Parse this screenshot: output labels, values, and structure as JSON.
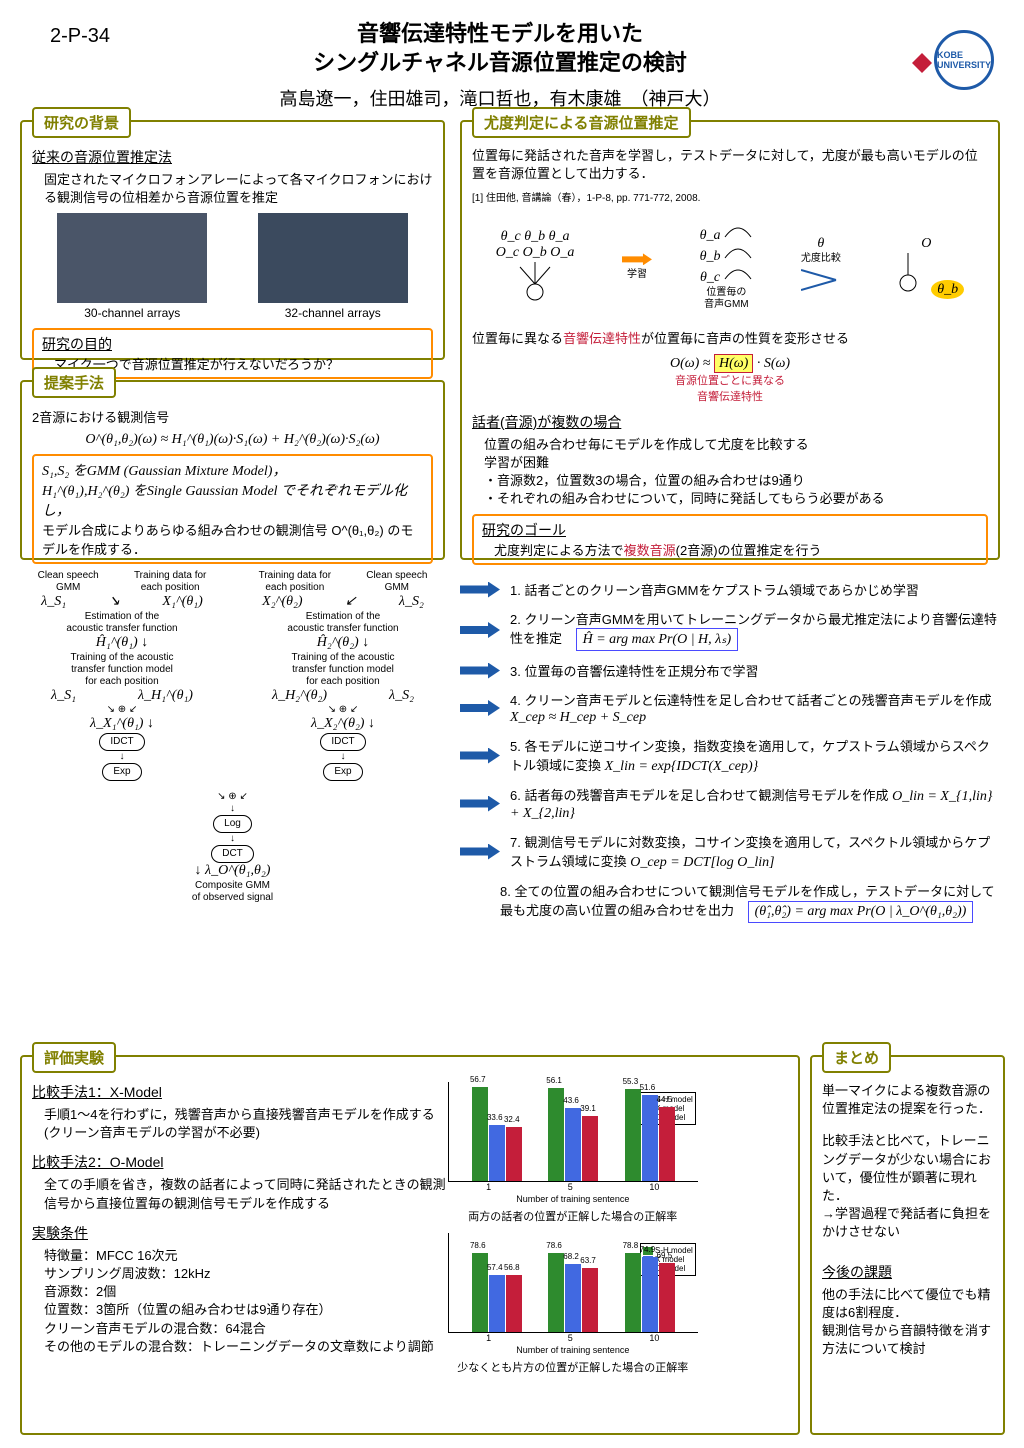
{
  "header": {
    "poster_id": "2-P-34",
    "title_line1": "音響伝達特性モデルを用いた",
    "title_line2": "シングルチャネル音源位置推定の検討",
    "authors": "高島遼一，住田雄司，滝口哲也，有木康雄　（神戸大）",
    "logo_text": "KOBE UNIVERSITY"
  },
  "background": {
    "label": "研究の背景",
    "sub1_title": "従来の音源位置推定法",
    "sub1_body": "固定されたマイクロフォンアレーによって各マイクロフォンにおける観測信号の位相差から音源位置を推定",
    "img1_caption": "30-channel arrays",
    "img2_caption": "32-channel arrays",
    "purpose_title": "研究の目的",
    "purpose_body": "マイク一つで音源位置推定が行えないだろうか？",
    "border_color": "#808000"
  },
  "likelihood": {
    "label": "尤度判定による音源位置推定",
    "intro": "位置毎に発話された音声を学習し，テストデータに対して，尤度が最も高いモデルの位置を音源位置として出力する．",
    "ref": "[1] 住田他, 音講論（春），1-P-8, pp. 771-772, 2008.",
    "diag_learn": "学習",
    "diag_compare": "尤度比較",
    "diag_gmm": "位置毎の\n音声GMM",
    "transform_intro": "位置毎に異なる音響伝達特性が位置毎に音声の性質を変形させる",
    "transform_eq": "O(ω) ≈ H(ω) · S(ω)",
    "transform_sub1": "音源位置ごとに異なる",
    "transform_sub2": "音響伝達特性",
    "multi_title": "話者(音源)が複数の場合",
    "multi_body": "位置の組み合わせ毎にモデルを作成して尤度を比較する\n学習が困難\n・音源数2，位置数3の場合，位置の組み合わせは9通り\n・それぞれの組み合わせについて，同時に発話してもらう必要がある",
    "goal_title": "研究のゴール",
    "goal_body": "尤度判定による方法で複数音源(2音源)の位置推定を行う",
    "goal_highlight": "複数音源",
    "border_color": "#808000"
  },
  "proposal": {
    "label": "提案手法",
    "obs_title": "2音源における観測信号",
    "obs_eq": "O^(θ₁,θ₂)(ω) ≈ H₁^(θ₁)(ω)·S₁(ω) + H₂^(θ₂)(ω)·S₂(ω)",
    "gmm_line1": "S₁,S₂ をGMM (Gaussian Mixture Model)，",
    "gmm_line2": "H₁^(θ₁),H₂^(θ₂) をSingle Gaussian Model でそれぞれモデル化し，",
    "gmm_line3": "モデル合成によりあらゆる組み合わせの観測信号 O^(θ₁,θ₂) のモデルを作成する．",
    "flow_labels": {
      "clean_gmm": "Clean speech\nGMM",
      "train_pos": "Training data for\neach position",
      "est_atf": "Estimation of the\nacoustic transfer function",
      "train_atf": "Training of the acoustic\ntransfer function model\nfor each position",
      "idct": "IDCT",
      "exp": "Exp",
      "log": "Log",
      "dct": "DCT",
      "composite": "Composite GMM\nof observed signal"
    },
    "border_color": "#808000"
  },
  "steps": [
    {
      "text": "1. 話者ごとのクリーン音声GMMをケプストラム領域であらかじめ学習",
      "formula": ""
    },
    {
      "text": "2. クリーン音声GMMを用いてトレーニングデータから最尤推定法により音響伝達特性を推定",
      "formula": "Ĥ = arg max Pr(O | H, λₛ)"
    },
    {
      "text": "3. 位置毎の音響伝達特性を正規分布で学習",
      "formula": ""
    },
    {
      "text": "4. クリーン音声モデルと伝達特性を足し合わせて話者ごとの残響音声モデルを作成",
      "formula": "X_cep ≈ H_cep + S_cep"
    },
    {
      "text": "5. 各モデルに逆コサイン変換，指数変換を適用して，ケプストラム領域からスペクトル領域に変換",
      "formula": "X_lin = exp{IDCT(X_cep)}"
    },
    {
      "text": "6. 話者毎の残響音声モデルを足し合わせて観測信号モデルを作成",
      "formula": "O_lin = X_{1,lin} + X_{2,lin}"
    },
    {
      "text": "7. 観測信号モデルに対数変換，コサイン変換を適用して，スペクトル領域からケプストラム領域に変換",
      "formula": "O_cep = DCT[log O_lin]"
    },
    {
      "text": "8. 全ての位置の組み合わせについて観測信号モデルを作成し，テストデータに対して最も尤度の高い位置の組み合わせを出力",
      "formula": "(θ̂₁,θ̂₂) = arg max Pr(O | λ_O^(θ₁,θ₂))"
    }
  ],
  "experiment": {
    "label": "評価実験",
    "comp1_title": "比較手法1：X-Model",
    "comp1_body": "手順1〜4を行わずに，残響音声から直接残響音声モデルを作成する(クリーン音声モデルの学習が不必要)",
    "comp2_title": "比較手法2：O-Model",
    "comp2_body": "全ての手順を省き，複数の話者によって同時に発話されたときの観測信号から直接位置毎の観測信号モデルを作成する",
    "cond_title": "実験条件",
    "cond_body": "特徴量：MFCC 16次元\nサンプリング周波数：12kHz\n音源数：2個\n位置数：3箇所（位置の組み合わせは9通り存在）\nクリーン音声モデルの混合数：64混合\nその他のモデルの混合数：トレーニングデータの文章数により調節",
    "chart1": {
      "caption": "両方の話者の位置が正解した場合の正解率",
      "xlabel": "Number of training sentence",
      "ylim": [
        0,
        60
      ],
      "categories": [
        "1",
        "5",
        "10"
      ],
      "series": [
        {
          "name": "S-H model",
          "color": "#2e8b2e",
          "values": [
            56.7,
            56.1,
            55.3
          ]
        },
        {
          "name": "X model",
          "color": "#4169e1",
          "values": [
            33.6,
            43.6,
            51.6
          ]
        },
        {
          "name": "O model",
          "color": "#c41e3a",
          "values": [
            32.4,
            39.1,
            44.5
          ]
        }
      ]
    },
    "chart2": {
      "caption": "少なくとも片方の位置が正解した場合の正解率",
      "xlabel": "Number of training sentence",
      "ylim": [
        0,
        100
      ],
      "categories": [
        "1",
        "5",
        "10"
      ],
      "series": [
        {
          "name": "S-H model",
          "color": "#2e8b2e",
          "values": [
            78.6,
            78.6,
            78.8
          ]
        },
        {
          "name": "X model",
          "color": "#4169e1",
          "values": [
            57.4,
            68.2,
            74.9
          ]
        },
        {
          "name": "O model",
          "color": "#c41e3a",
          "values": [
            56.8,
            63.7,
            69.5
          ]
        }
      ]
    },
    "border_color": "#808000"
  },
  "summary": {
    "label": "まとめ",
    "body1": "単一マイクによる複数音源の位置推定法の提案を行った．",
    "body2": "比較手法と比べて，トレーニングデータが少ない場合において，優位性が顕著に現れた．\n→学習過程で発話者に負担をかけさせない",
    "future_title": "今後の課題",
    "future_body": "他の手法に比べて優位でも精度は6割程度．\n観測信号から音韻特徴を消す方法について検討",
    "border_color": "#808000"
  },
  "colors": {
    "olive": "#808000",
    "orange": "#ff8c00",
    "red": "#c41e3a",
    "blue": "#1e5aa8",
    "green_bar": "#2e8b2e",
    "blue_bar": "#4169e1",
    "red_bar": "#c41e3a"
  }
}
